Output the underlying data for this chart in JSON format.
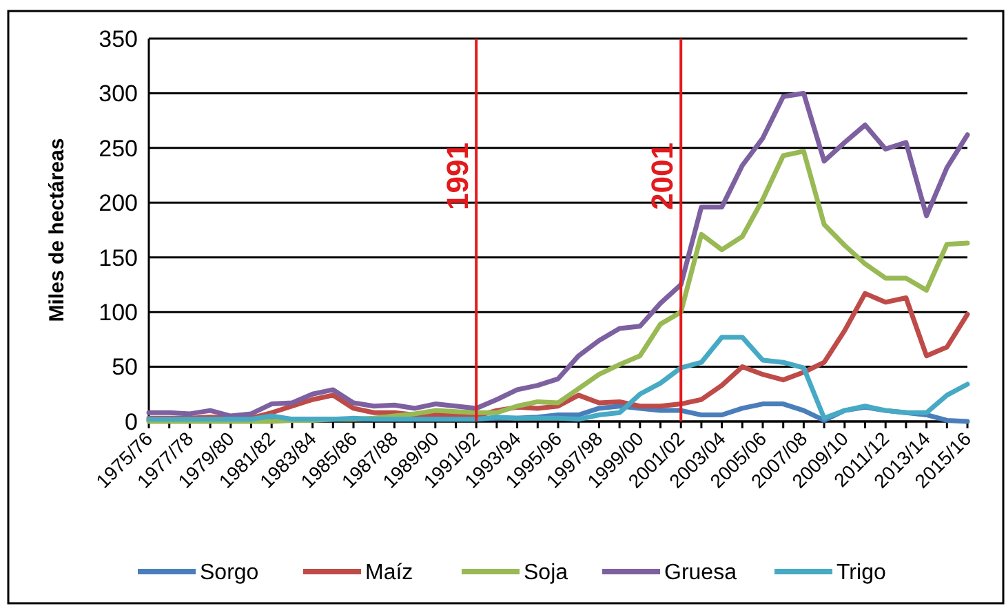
{
  "chart_data": {
    "type": "line",
    "ylabel": "Miles de hectáreas",
    "categories": [
      "1975/76",
      null,
      "1977/78",
      null,
      "1979/80",
      null,
      "1981/82",
      null,
      "1983/84",
      null,
      "1985/86",
      null,
      "1987/88",
      null,
      "1989/90",
      null,
      "1991/92",
      null,
      "1993/94",
      null,
      "1995/96",
      null,
      "1997/98",
      null,
      "1999/00",
      null,
      "2001/02",
      null,
      "2003/04",
      null,
      "2005/06",
      null,
      "2007/08",
      null,
      "2009/10",
      null,
      "2011/12",
      null,
      "2013/14",
      null,
      "2015/16"
    ],
    "series": [
      {
        "name": "Sorgo",
        "color": "#4a7ebb",
        "values": [
          1,
          1,
          1,
          1,
          1,
          1,
          2,
          2,
          2,
          2,
          2,
          2,
          2,
          2,
          2,
          2,
          2,
          3,
          3,
          4,
          6,
          6,
          12,
          14,
          12,
          10,
          10,
          6,
          6,
          12,
          16,
          16,
          10,
          1,
          10,
          13,
          10,
          8,
          6,
          1,
          0
        ]
      },
      {
        "name": "Maíz",
        "color": "#be4b48",
        "values": [
          3,
          3,
          3,
          4,
          3,
          3,
          8,
          14,
          20,
          24,
          12,
          8,
          8,
          6,
          6,
          6,
          5,
          10,
          13,
          12,
          14,
          24,
          17,
          18,
          14,
          14,
          16,
          20,
          33,
          50,
          43,
          38,
          45,
          54,
          83,
          117,
          109,
          113,
          60,
          68,
          98
        ]
      },
      {
        "name": "Soja",
        "color": "#98b954",
        "values": [
          0,
          0,
          0,
          0,
          0,
          0,
          0,
          1,
          1,
          2,
          2,
          3,
          5,
          7,
          10,
          9,
          8,
          8,
          14,
          18,
          17,
          30,
          43,
          52,
          60,
          89,
          100,
          171,
          157,
          169,
          203,
          243,
          247,
          180,
          161,
          144,
          131,
          131,
          120,
          162,
          163
        ]
      },
      {
        "name": "Gruesa",
        "color": "#7d60a0",
        "values": [
          8,
          8,
          7,
          10,
          5,
          7,
          16,
          17,
          25,
          29,
          17,
          14,
          15,
          12,
          16,
          14,
          12,
          20,
          29,
          33,
          39,
          60,
          74,
          85,
          87,
          108,
          125,
          196,
          196,
          234,
          259,
          297,
          300,
          238,
          255,
          271,
          249,
          255,
          188,
          232,
          262
        ]
      },
      {
        "name": "Trigo",
        "color": "#46aac5",
        "values": [
          2,
          2,
          2,
          2,
          2,
          2,
          5,
          2,
          2,
          2,
          3,
          2,
          2,
          2,
          2,
          2,
          2,
          4,
          3,
          3,
          3,
          2,
          6,
          8,
          25,
          35,
          49,
          54,
          77,
          77,
          56,
          54,
          49,
          3,
          10,
          14,
          10,
          8,
          8,
          24,
          34
        ]
      }
    ],
    "ylim": [
      0,
      350
    ],
    "yticks": [
      0,
      50,
      100,
      150,
      200,
      250,
      300,
      350
    ],
    "grid": "y",
    "legend": "bottom",
    "marker": "none",
    "line_style": "solid",
    "ref_lines": [
      {
        "axis": "x",
        "value": "1991/92",
        "label": "1991",
        "color": "#e31a1c"
      },
      {
        "axis": "x",
        "value": "2001/02",
        "label": "2001",
        "color": "#e31a1c"
      }
    ]
  }
}
